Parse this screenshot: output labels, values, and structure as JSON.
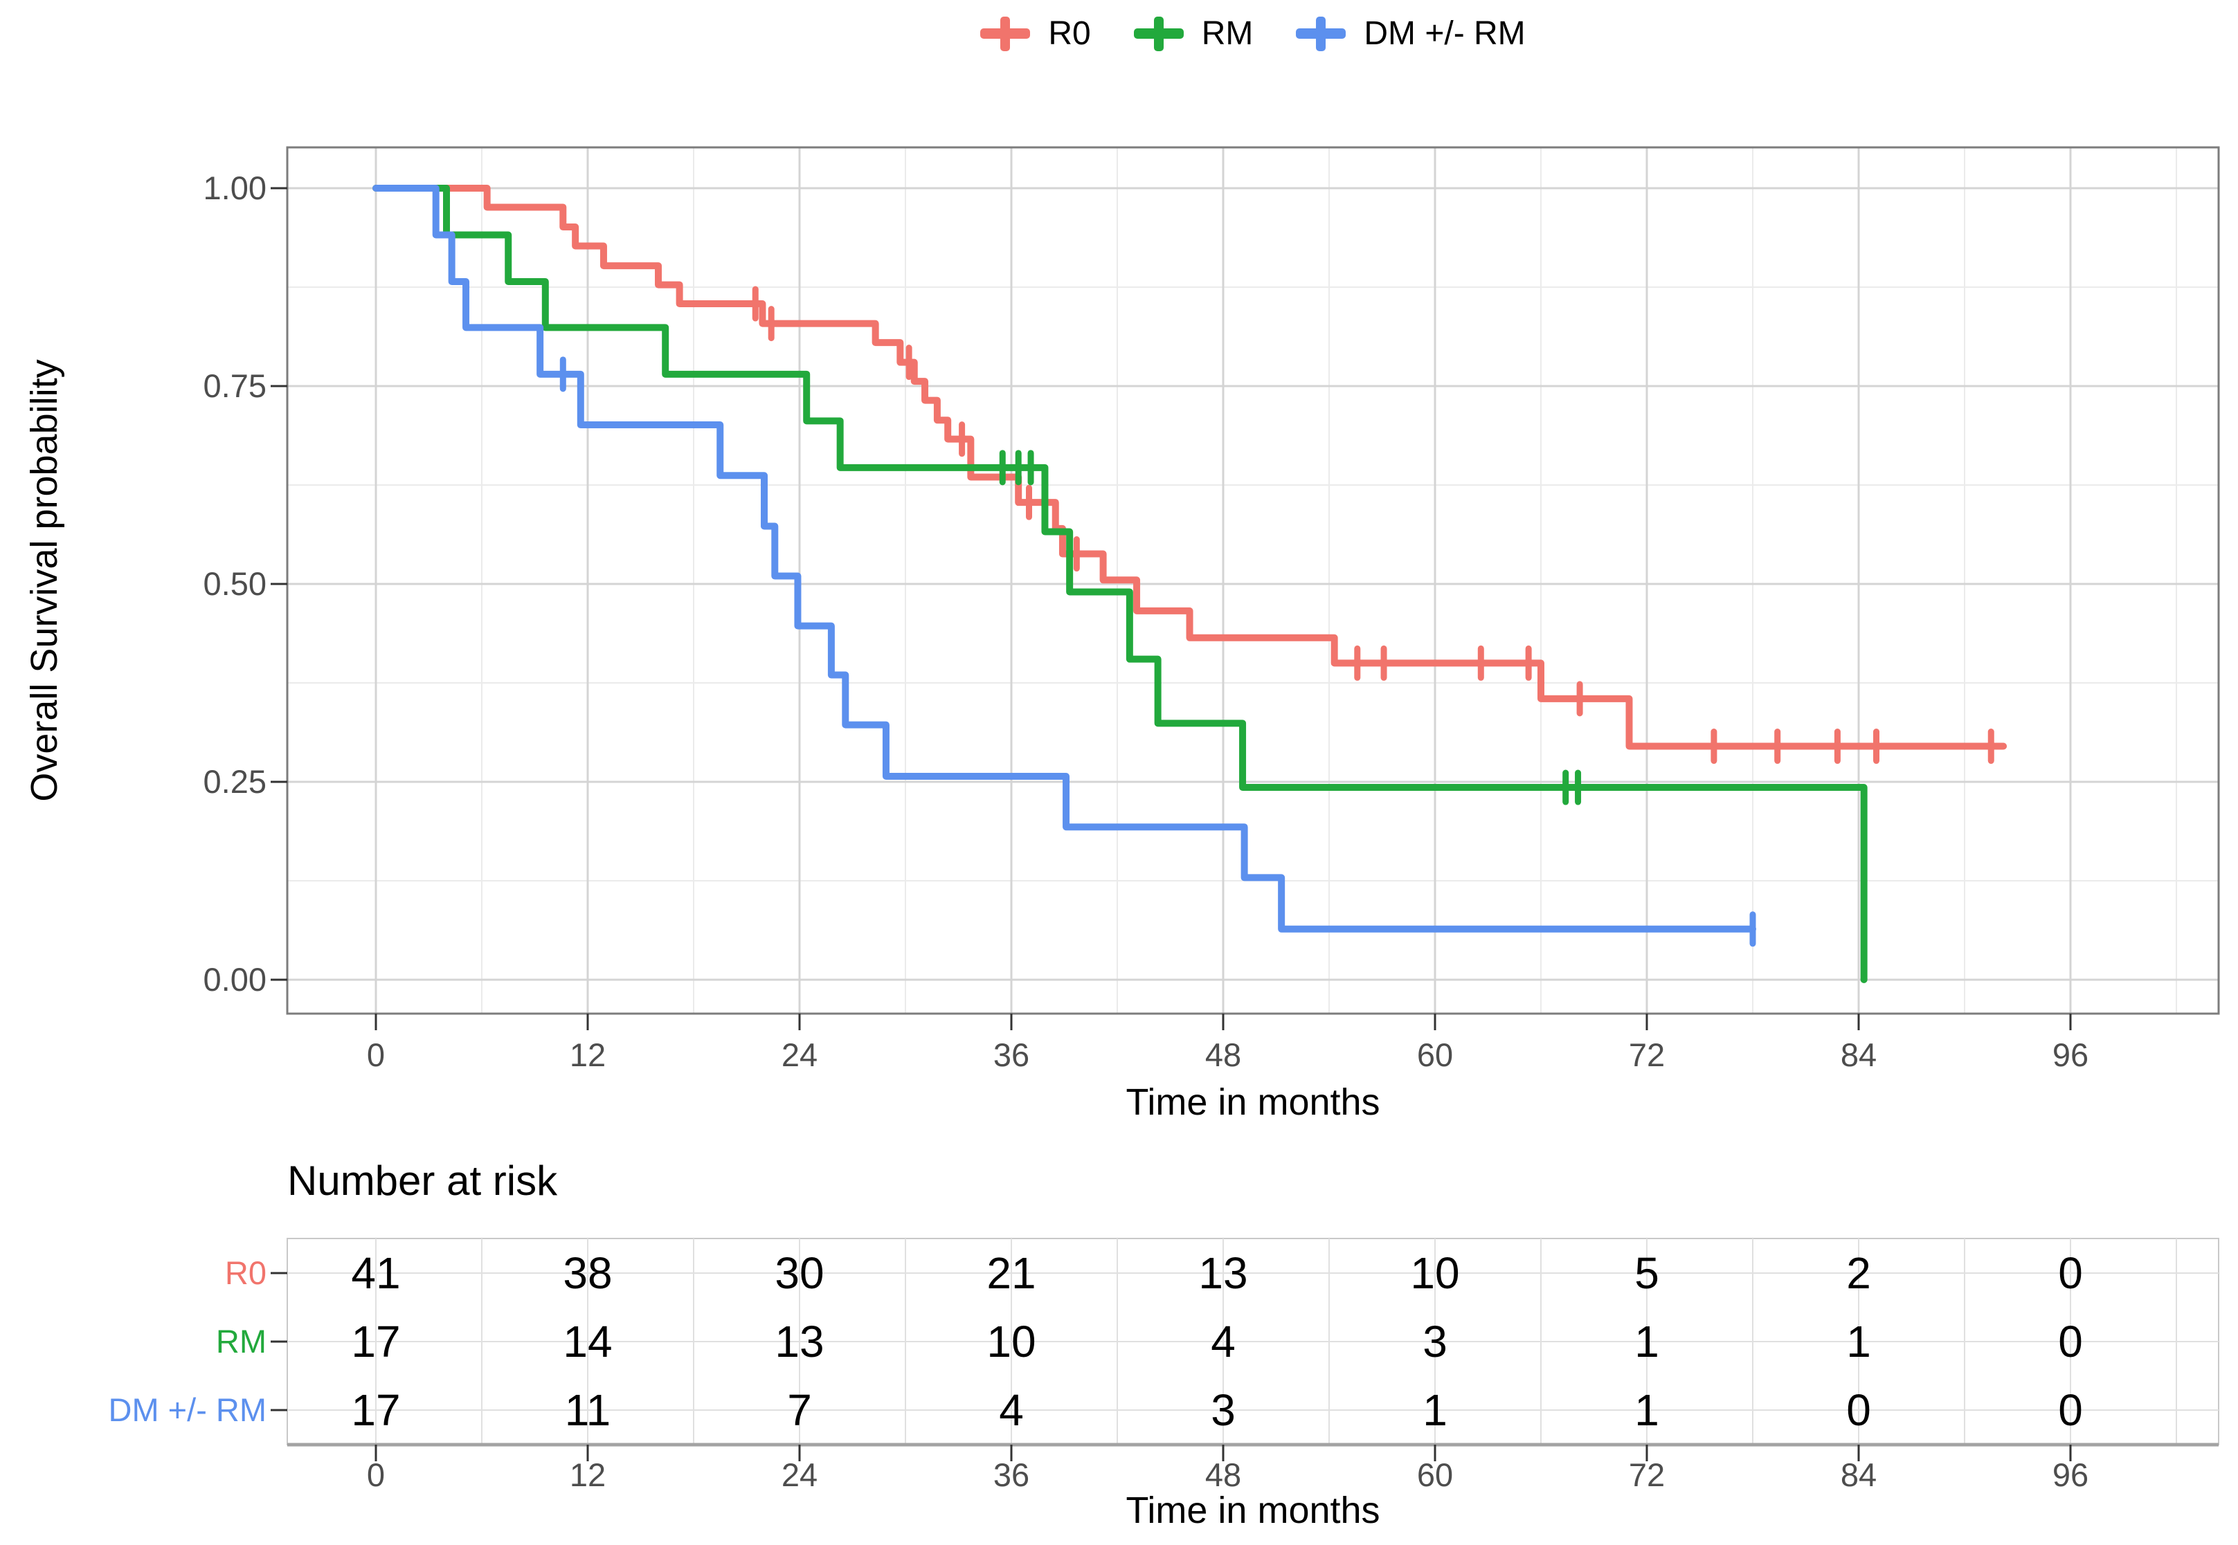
{
  "figure": {
    "background": "#ffffff"
  },
  "legend": {
    "items": [
      {
        "id": "r0",
        "label": "R0",
        "color": "#F1746C"
      },
      {
        "id": "rm",
        "label": "RM",
        "color": "#22A93C"
      },
      {
        "id": "dm-rm",
        "label": "DM +/- RM",
        "color": "#5C90EE"
      }
    ]
  },
  "chart_data": {
    "type": "line",
    "subtype": "kaplan-meier-step",
    "title": "",
    "xlabel": "Time in months",
    "ylabel": "Overall Survival probability",
    "xlim": [
      -5,
      104.5
    ],
    "ylim": [
      -0.05,
      1.05
    ],
    "x_ticks": [
      0,
      12,
      24,
      36,
      48,
      60,
      72,
      84,
      96
    ],
    "x_tick_labels": [
      "0",
      "12",
      "24",
      "36",
      "48",
      "60",
      "72",
      "84",
      "96"
    ],
    "x_minor_ticks": [
      6,
      18,
      30,
      42,
      54,
      66,
      78,
      90,
      102
    ],
    "y_ticks": [
      0,
      0.25,
      0.5,
      0.75,
      1.0
    ],
    "y_tick_labels": [
      "0.00",
      "0.25",
      "0.50",
      "0.75",
      "1.00"
    ],
    "y_minor_ticks": [
      0.125,
      0.375,
      0.625,
      0.875
    ],
    "grid": {
      "major": true,
      "minor": true
    },
    "legend_position": "top",
    "series": [
      {
        "name": "R0",
        "color": "#F1746C",
        "start": [
          0,
          1.0
        ],
        "steps": [
          [
            6.3,
            0.976
          ],
          [
            10.6,
            0.951
          ],
          [
            11.3,
            0.927
          ],
          [
            12.9,
            0.902
          ],
          [
            16.0,
            0.878
          ],
          [
            17.2,
            0.854
          ],
          [
            21.9,
            0.829
          ],
          [
            28.3,
            0.805
          ],
          [
            29.7,
            0.78
          ],
          [
            30.5,
            0.756
          ],
          [
            31.1,
            0.732
          ],
          [
            31.8,
            0.707
          ],
          [
            32.4,
            0.683
          ],
          [
            33.7,
            0.635
          ],
          [
            36.4,
            0.603
          ],
          [
            38.5,
            0.57
          ],
          [
            38.9,
            0.538
          ],
          [
            41.2,
            0.505
          ],
          [
            43.1,
            0.466
          ],
          [
            46.1,
            0.432
          ],
          [
            54.3,
            0.4
          ],
          [
            66.0,
            0.355
          ],
          [
            71.0,
            0.295
          ]
        ],
        "end_time": 92.2,
        "censors": [
          [
            21.5,
            0.854
          ],
          [
            22.4,
            0.829
          ],
          [
            30.2,
            0.78
          ],
          [
            33.2,
            0.683
          ],
          [
            37.0,
            0.603
          ],
          [
            39.7,
            0.538
          ],
          [
            55.6,
            0.4
          ],
          [
            57.1,
            0.4
          ],
          [
            62.6,
            0.4
          ],
          [
            65.3,
            0.4
          ],
          [
            68.2,
            0.355
          ],
          [
            75.8,
            0.295
          ],
          [
            79.4,
            0.295
          ],
          [
            82.8,
            0.295
          ],
          [
            85.0,
            0.295
          ],
          [
            91.5,
            0.295
          ]
        ]
      },
      {
        "name": "RM",
        "color": "#22A93C",
        "start": [
          0,
          1.0
        ],
        "steps": [
          [
            4.0,
            0.941
          ],
          [
            7.5,
            0.882
          ],
          [
            9.6,
            0.824
          ],
          [
            16.4,
            0.765
          ],
          [
            24.4,
            0.706
          ],
          [
            26.3,
            0.647
          ],
          [
            37.9,
            0.566
          ],
          [
            39.3,
            0.49
          ],
          [
            42.7,
            0.405
          ],
          [
            44.3,
            0.324
          ],
          [
            49.1,
            0.243
          ],
          [
            84.3,
            0.0
          ]
        ],
        "end_time": 84.3,
        "censors": [
          [
            35.5,
            0.647
          ],
          [
            36.4,
            0.647
          ],
          [
            37.1,
            0.647
          ],
          [
            67.4,
            0.243
          ],
          [
            68.1,
            0.243
          ]
        ]
      },
      {
        "name": "DM +/- RM",
        "color": "#5C90EE",
        "start": [
          0,
          1.0
        ],
        "steps": [
          [
            3.4,
            0.941
          ],
          [
            4.3,
            0.882
          ],
          [
            5.1,
            0.824
          ],
          [
            9.3,
            0.765
          ],
          [
            11.6,
            0.701
          ],
          [
            19.5,
            0.637
          ],
          [
            22.0,
            0.573
          ],
          [
            22.6,
            0.51
          ],
          [
            23.9,
            0.447
          ],
          [
            25.8,
            0.385
          ],
          [
            26.6,
            0.322
          ],
          [
            28.9,
            0.257
          ],
          [
            39.1,
            0.193
          ],
          [
            49.2,
            0.129
          ],
          [
            51.3,
            0.064
          ]
        ],
        "end_time": 78.0,
        "censors": [
          [
            10.6,
            0.765
          ],
          [
            78.0,
            0.064
          ]
        ]
      }
    ]
  },
  "risk_table": {
    "title": "Number at risk",
    "xlabel": "Time in months",
    "times": [
      0,
      12,
      24,
      36,
      48,
      60,
      72,
      84,
      96
    ],
    "time_labels": [
      "0",
      "12",
      "24",
      "36",
      "48",
      "60",
      "72",
      "84",
      "96"
    ],
    "rows": [
      {
        "label": "R0",
        "color": "#F1746C",
        "values": [
          "41",
          "38",
          "30",
          "21",
          "13",
          "10",
          "5",
          "2",
          "0"
        ]
      },
      {
        "label": "RM",
        "color": "#22A93C",
        "values": [
          "17",
          "14",
          "13",
          "10",
          "4",
          "3",
          "1",
          "1",
          "0"
        ]
      },
      {
        "label": "DM +/- RM",
        "color": "#5C90EE",
        "values": [
          "17",
          "11",
          "7",
          "4",
          "3",
          "1",
          "1",
          "0",
          "0"
        ]
      }
    ]
  },
  "style_colors": {
    "tick_text": "#4d4d4d",
    "grid_major": "#d4d4d4",
    "grid_minor": "#ebebeb",
    "panel_border": "#7d7d7d",
    "risk_border": "#c9c9c9",
    "risk_border_bottom": "#a3a3a3",
    "risk_grid": "#e0e0e0",
    "axis_tick": "#333333"
  }
}
